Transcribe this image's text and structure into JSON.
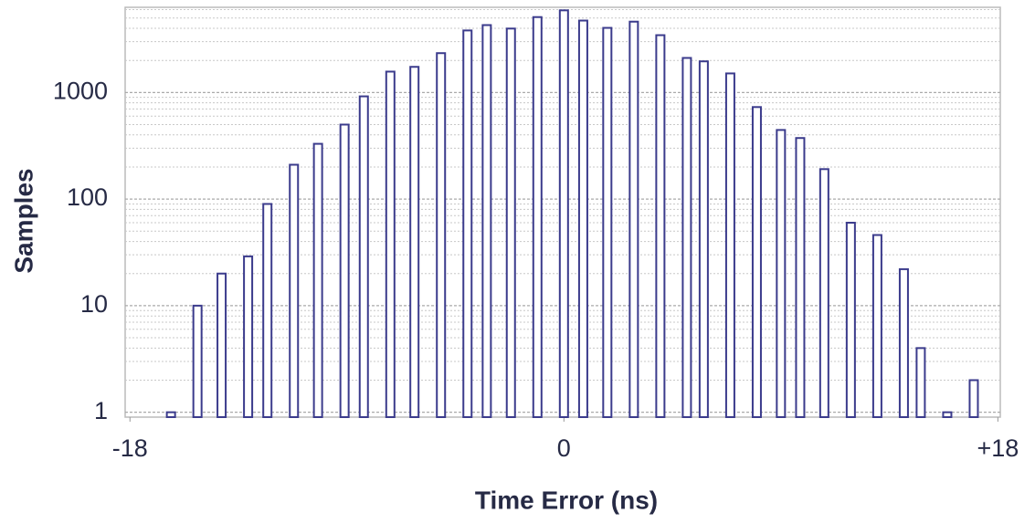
{
  "chart_data": {
    "type": "bar",
    "x_label": "Time Error (ns)",
    "y_label": "Samples",
    "x": [
      -16.3,
      -15.2,
      -14.2,
      -13.1,
      -12.3,
      -11.2,
      -10.2,
      -9.1,
      -8.3,
      -7.2,
      -6.2,
      -5.1,
      -4.0,
      -3.2,
      -2.2,
      -1.1,
      0,
      0.8,
      1.8,
      2.9,
      4.0,
      5.1,
      5.8,
      6.9,
      8.0,
      9.0,
      9.8,
      10.8,
      11.9,
      13.0,
      14.1,
      14.8,
      15.9,
      17.0
    ],
    "values": [
      1,
      10,
      20,
      29,
      90,
      210,
      330,
      500,
      920,
      1570,
      1740,
      2340,
      3820,
      4290,
      3980,
      5100,
      5900,
      4730,
      4040,
      4620,
      3450,
      2110,
      1960,
      1510,
      730,
      445,
      374,
      191,
      60,
      46,
      22,
      4,
      1,
      2
    ],
    "color": "#3b3b8c",
    "xlim": [
      -18.2,
      18.1
    ],
    "xticks": [
      -18,
      0,
      {
        "value": 18,
        "label": "+18"
      }
    ],
    "ylim": [
      0.9,
      6300
    ],
    "yticks": [
      1,
      10,
      100,
      1000
    ],
    "log_y": true,
    "grid": true,
    "yminor": [
      2,
      3,
      4,
      5,
      6,
      7,
      8,
      9,
      20,
      30,
      40,
      50,
      60,
      70,
      80,
      90,
      200,
      300,
      400,
      500,
      600,
      700,
      800,
      900,
      2000,
      3000,
      4000,
      5000,
      6000
    ]
  }
}
